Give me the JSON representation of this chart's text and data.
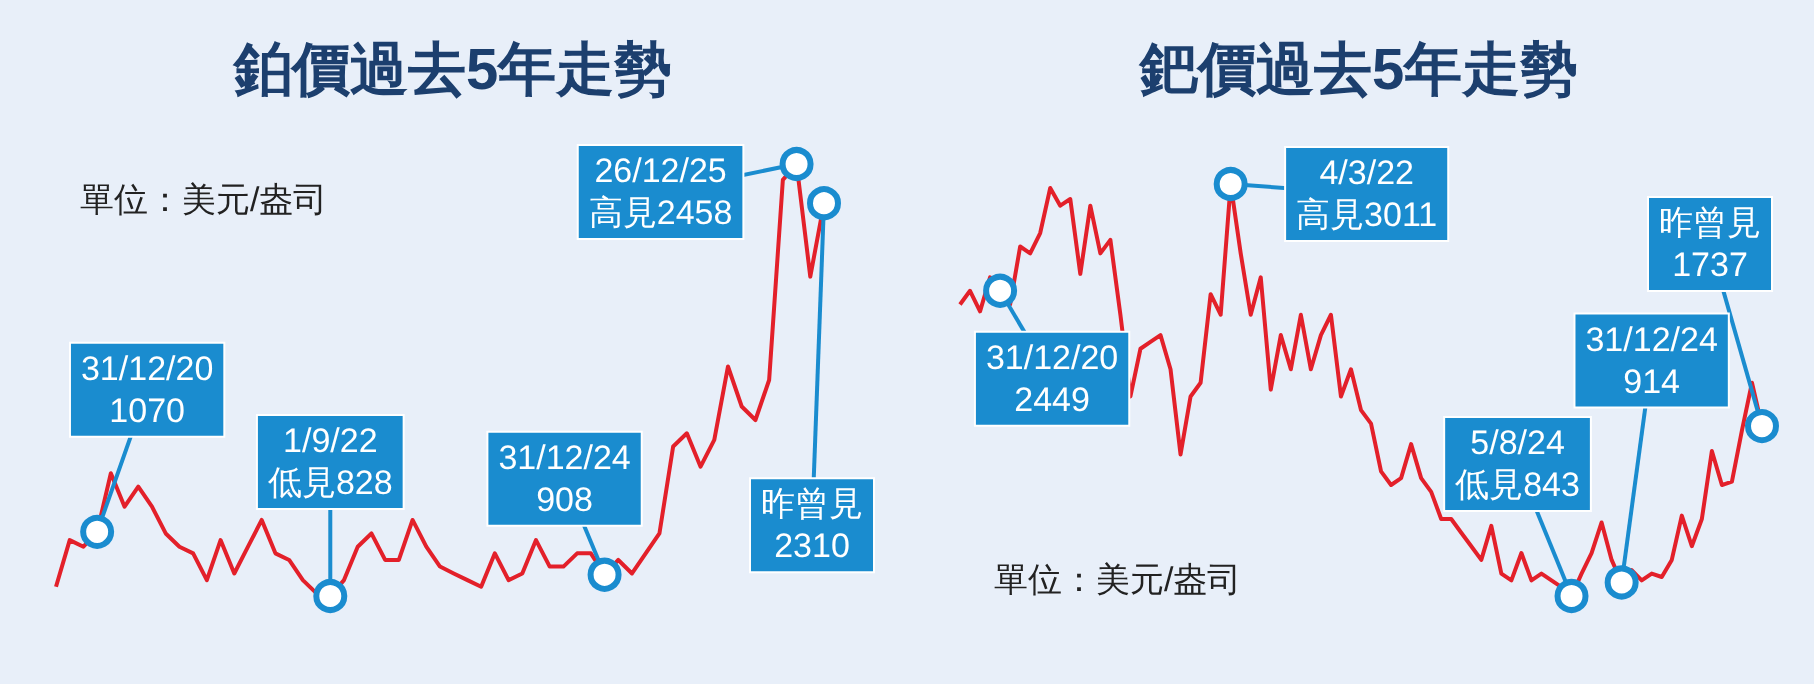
{
  "chart_data": [
    {
      "type": "line",
      "title": "鉑價過去5年走勢",
      "color": "#e3202a",
      "tick_labels": false,
      "categories": [
        null,
        null,
        null,
        null,
        null,
        null,
        null,
        null,
        null,
        null,
        null,
        null,
        null,
        null,
        null,
        null,
        null,
        null,
        null,
        null,
        null,
        null,
        null,
        null,
        null,
        null,
        null,
        null,
        null,
        null,
        null,
        null,
        null,
        null,
        null,
        null,
        null,
        null,
        null,
        null,
        null,
        null,
        null,
        null,
        null,
        null,
        null,
        null,
        null,
        null,
        null,
        null,
        null,
        null,
        null,
        null,
        null
      ],
      "values": [
        863,
        1039,
        1014,
        1070,
        1291,
        1165,
        1241,
        1165,
        1064,
        1014,
        989,
        888,
        1039,
        913,
        1014,
        1115,
        989,
        964,
        888,
        838,
        828,
        888,
        1014,
        1064,
        964,
        964,
        1115,
        1014,
        939,
        913,
        888,
        863,
        989,
        888,
        913,
        1039,
        939,
        939,
        989,
        989,
        908,
        964,
        913,
        989,
        1064,
        1392,
        1442,
        1316,
        1417,
        1694,
        1543,
        1492,
        1643,
        2398,
        2458,
        2033,
        2310
      ],
      "value_labels": [
        null,
        null,
        null,
        "31/12/20\n1070",
        null,
        null,
        null,
        null,
        null,
        null,
        null,
        null,
        null,
        null,
        null,
        null,
        null,
        null,
        null,
        null,
        "1/9/22\n低見828",
        null,
        null,
        null,
        null,
        null,
        null,
        null,
        null,
        null,
        null,
        null,
        null,
        null,
        null,
        null,
        null,
        null,
        null,
        null,
        "31/12/24\n908",
        null,
        null,
        null,
        null,
        null,
        null,
        null,
        null,
        null,
        null,
        null,
        null,
        null,
        "26/12/25\n高見2458",
        null,
        "昨曾見\n2310"
      ],
      "annotations": [
        "單位：美元/盎司"
      ]
    },
    {
      "type": "line",
      "title": "鈀價過去5年走勢",
      "color": "#e3202a",
      "tick_labels": false,
      "categories": [
        null,
        null,
        null,
        null,
        null,
        null,
        null,
        null,
        null,
        null,
        null,
        null,
        null,
        null,
        null,
        null,
        null,
        null,
        null,
        null,
        null,
        null,
        null,
        null,
        null,
        null,
        null,
        null,
        null,
        null,
        null,
        null,
        null,
        null,
        null,
        null,
        null,
        null,
        null,
        null,
        null,
        null,
        null,
        null,
        null,
        null,
        null,
        null,
        null,
        null,
        null,
        null,
        null,
        null,
        null,
        null,
        null,
        null,
        null,
        null,
        null,
        null,
        null,
        null,
        null,
        null,
        null,
        null,
        null,
        null,
        null,
        null,
        null,
        null,
        null,
        null,
        null,
        null,
        null,
        null,
        null
      ],
      "values": [
        2377,
        2449,
        2341,
        2520,
        2449,
        2377,
        2682,
        2646,
        2753,
        2990,
        2897,
        2932,
        2538,
        2897,
        2646,
        2717,
        2323,
        1893,
        2144,
        2180,
        2216,
        2036,
        1588,
        1893,
        1965,
        2431,
        2323,
        3011,
        2646,
        2323,
        2520,
        1929,
        2216,
        2036,
        2323,
        2036,
        2216,
        2323,
        1893,
        2036,
        1821,
        1750,
        1499,
        1427,
        1463,
        1642,
        1463,
        1391,
        1248,
        1248,
        1176,
        1105,
        1033,
        1212,
        961,
        925,
        1069,
        925,
        961,
        925,
        890,
        843,
        961,
        1069,
        1230,
        1033,
        914,
        979,
        925,
        961,
        943,
        1033,
        1266,
        1105,
        1248,
        1606,
        1427,
        1445,
        1714,
        1965,
        1737
      ],
      "value_labels": [
        null,
        null,
        null,
        null,
        "31/12/20\n2449",
        null,
        null,
        null,
        null,
        null,
        null,
        null,
        null,
        null,
        null,
        null,
        null,
        null,
        null,
        null,
        null,
        null,
        null,
        null,
        null,
        null,
        null,
        "4/3/22\n高見3011",
        null,
        null,
        null,
        null,
        null,
        null,
        null,
        null,
        null,
        null,
        null,
        null,
        null,
        null,
        null,
        null,
        null,
        null,
        null,
        null,
        null,
        null,
        null,
        null,
        null,
        null,
        null,
        null,
        null,
        null,
        null,
        null,
        null,
        "5/8/24\n低見843",
        null,
        null,
        null,
        null,
        "31/12/24\n914",
        null,
        null,
        null,
        null,
        null,
        null,
        null,
        null,
        null,
        null,
        null,
        null,
        null,
        "昨曾見\n1737"
      ],
      "annotations": [
        "單位：美元/盎司"
      ]
    }
  ]
}
